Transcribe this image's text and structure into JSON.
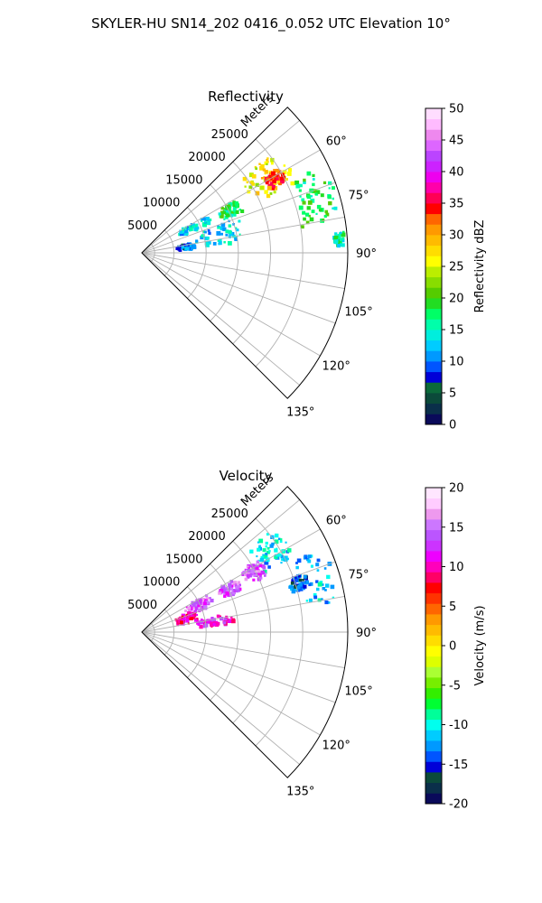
{
  "figure": {
    "title": "SKYLER-HU  SN14_202  0416_0.052 UTC Elevation 10°"
  },
  "chart_data": [
    {
      "type": "heatmap",
      "subtype": "radar-ppi-sector",
      "title": "Reflectivity",
      "range_label": "Meters",
      "range_ticks": [
        5000,
        10000,
        15000,
        20000,
        25000
      ],
      "range_max": 32000,
      "azimuth_range_deg": [
        45,
        135
      ],
      "azimuth_ticks_deg": [
        60,
        75,
        90,
        105,
        120,
        135
      ],
      "azimuth_tick_labels": [
        "60°",
        "75°",
        "90°",
        "105°",
        "120°",
        "135°"
      ],
      "grid": true,
      "colorbar": {
        "label": "Reflectivity dBZ",
        "min": 0,
        "max": 50,
        "ticks": [
          0,
          5,
          10,
          15,
          20,
          25,
          30,
          35,
          40,
          45,
          50
        ],
        "colors": [
          "#0a0a5a",
          "#0a2f4a",
          "#0b4a3a",
          "#0b6a3a",
          "#0000d8",
          "#0055ff",
          "#0099ff",
          "#00ccff",
          "#00eedd",
          "#00ffaa",
          "#00ff66",
          "#22dd22",
          "#55cc00",
          "#88dd00",
          "#bbee00",
          "#ffff00",
          "#ffdd00",
          "#ffbb00",
          "#ff9900",
          "#ff6600",
          "#ff0000",
          "#ff0055",
          "#ff00aa",
          "#ee00ee",
          "#cc22ff",
          "#bb44ff",
          "#dd66ff",
          "#ee88ee",
          "#ffbbff",
          "#ffddff"
        ]
      },
      "echo_regions": [
        {
          "az": [
            52,
            66
          ],
          "r": [
            19000,
            26500
          ],
          "value": 26
        },
        {
          "az": [
            58,
            64
          ],
          "r": [
            22000,
            25500
          ],
          "value": 33
        },
        {
          "az": [
            64,
            82
          ],
          "r": [
            25000,
            31500
          ],
          "value": 18
        },
        {
          "az": [
            61,
            68
          ],
          "r": [
            13500,
            17000
          ],
          "value": 18
        },
        {
          "az": [
            60,
            68
          ],
          "r": [
            6500,
            12000
          ],
          "value": 13
        },
        {
          "az": [
            70,
            84
          ],
          "r": [
            8000,
            16000
          ],
          "value": 13
        },
        {
          "az": [
            80,
            86
          ],
          "r": [
            5500,
            8500
          ],
          "value": 9
        },
        {
          "az": [
            84,
            88
          ],
          "r": [
            30000,
            31500
          ],
          "value": 16
        }
      ]
    },
    {
      "type": "heatmap",
      "subtype": "radar-ppi-sector",
      "title": "Velocity",
      "range_label": "Meters",
      "range_ticks": [
        5000,
        10000,
        15000,
        20000,
        25000
      ],
      "range_max": 32000,
      "azimuth_range_deg": [
        45,
        135
      ],
      "azimuth_ticks_deg": [
        60,
        75,
        90,
        105,
        120,
        135
      ],
      "azimuth_tick_labels": [
        "60°",
        "75°",
        "90°",
        "105°",
        "120°",
        "135°"
      ],
      "grid": true,
      "colorbar": {
        "label": "Velocity (m/s)",
        "min": -20,
        "max": 20,
        "ticks": [
          -20,
          -15,
          -10,
          -5,
          0,
          5,
          10,
          15,
          20
        ],
        "colors": [
          "#0a0a5a",
          "#0a2f4a",
          "#0b4a3a",
          "#0000d8",
          "#0055ff",
          "#0099ff",
          "#00ccff",
          "#00ffee",
          "#00ff99",
          "#00ff33",
          "#33ee00",
          "#77ee00",
          "#aaff33",
          "#ddff00",
          "#ffff00",
          "#ffdd00",
          "#ffbb00",
          "#ff9900",
          "#ff6600",
          "#ff3300",
          "#ff0000",
          "#ff0066",
          "#ff00bb",
          "#ee00ff",
          "#cc33ff",
          "#bb55ff",
          "#cc77ff",
          "#ee99ee",
          "#ffccff",
          "#ffe6ff"
        ]
      },
      "echo_regions": [
        {
          "az": [
            52,
            64
          ],
          "r": [
            21000,
            26500
          ],
          "value": -11
        },
        {
          "az": [
            58,
            66
          ],
          "r": [
            18000,
            21500
          ],
          "value": 14
        },
        {
          "az": [
            64,
            82
          ],
          "r": [
            25000,
            31500
          ],
          "value": -12
        },
        {
          "az": [
            60,
            68
          ],
          "r": [
            13500,
            17000
          ],
          "value": 14
        },
        {
          "az": [
            60,
            70
          ],
          "r": [
            7000,
            12000
          ],
          "value": 14
        },
        {
          "az": [
            68,
            80
          ],
          "r": [
            5500,
            9000
          ],
          "value": 10
        },
        {
          "az": [
            78,
            86
          ],
          "r": [
            8500,
            14500
          ],
          "value": 11
        },
        {
          "az": [
            70,
            75
          ],
          "r": [
            24000,
            27000
          ],
          "value": -14
        }
      ]
    }
  ]
}
